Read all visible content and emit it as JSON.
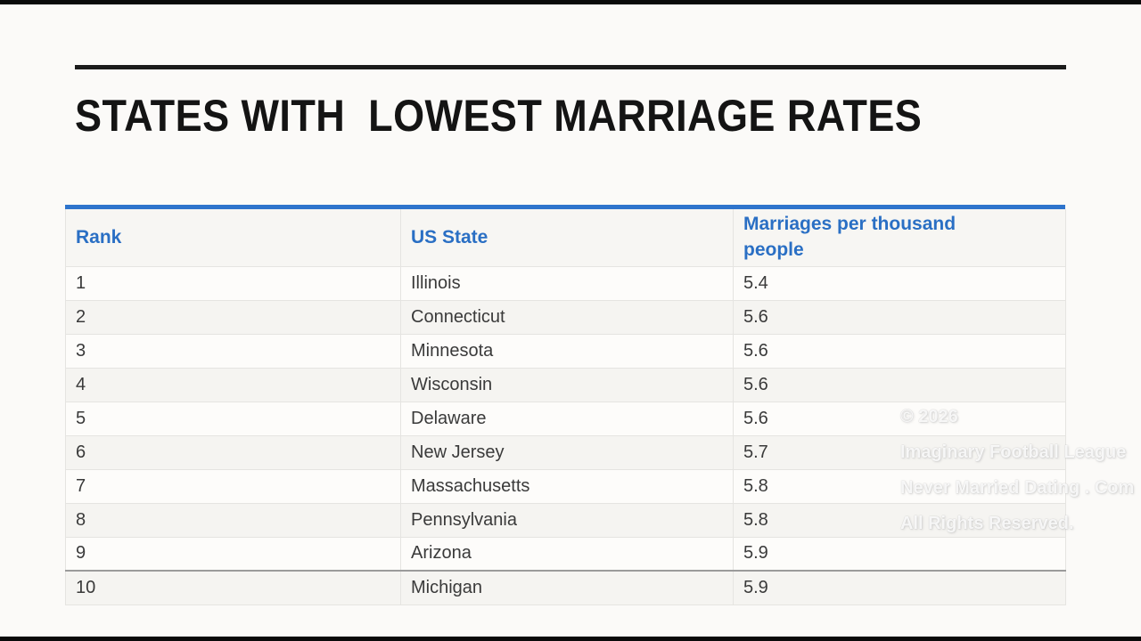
{
  "title": "STATES WITH  LOWEST MARRIAGE RATES",
  "table": {
    "headers": [
      "Rank",
      "US State",
      "Marriages per thousand people"
    ],
    "rows": [
      {
        "rank": "1",
        "state": "Illinois",
        "rate": "5.4"
      },
      {
        "rank": "2",
        "state": "Connecticut",
        "rate": "5.6"
      },
      {
        "rank": "3",
        "state": "Minnesota",
        "rate": "5.6"
      },
      {
        "rank": "4",
        "state": "Wisconsin",
        "rate": "5.6"
      },
      {
        "rank": "5",
        "state": "Delaware",
        "rate": "5.6"
      },
      {
        "rank": "6",
        "state": "New Jersey",
        "rate": "5.7"
      },
      {
        "rank": "7",
        "state": "Massachusetts",
        "rate": "5.8"
      },
      {
        "rank": "8",
        "state": "Pennsylvania",
        "rate": "5.8"
      },
      {
        "rank": "9",
        "state": "Arizona",
        "rate": "5.9"
      },
      {
        "rank": "10",
        "state": "Michigan",
        "rate": "5.9"
      }
    ]
  },
  "watermark": {
    "lines": [
      "© 2026",
      "Imaginary Football League",
      "Never Married Dating . Com",
      "All Rights Reserved."
    ]
  },
  "colors": {
    "accent_blue_text": "#2a6fc4",
    "header_bar_blue": "#2e74cc",
    "title_black": "#141414",
    "row_alt_gray": "#f5f4f1"
  }
}
